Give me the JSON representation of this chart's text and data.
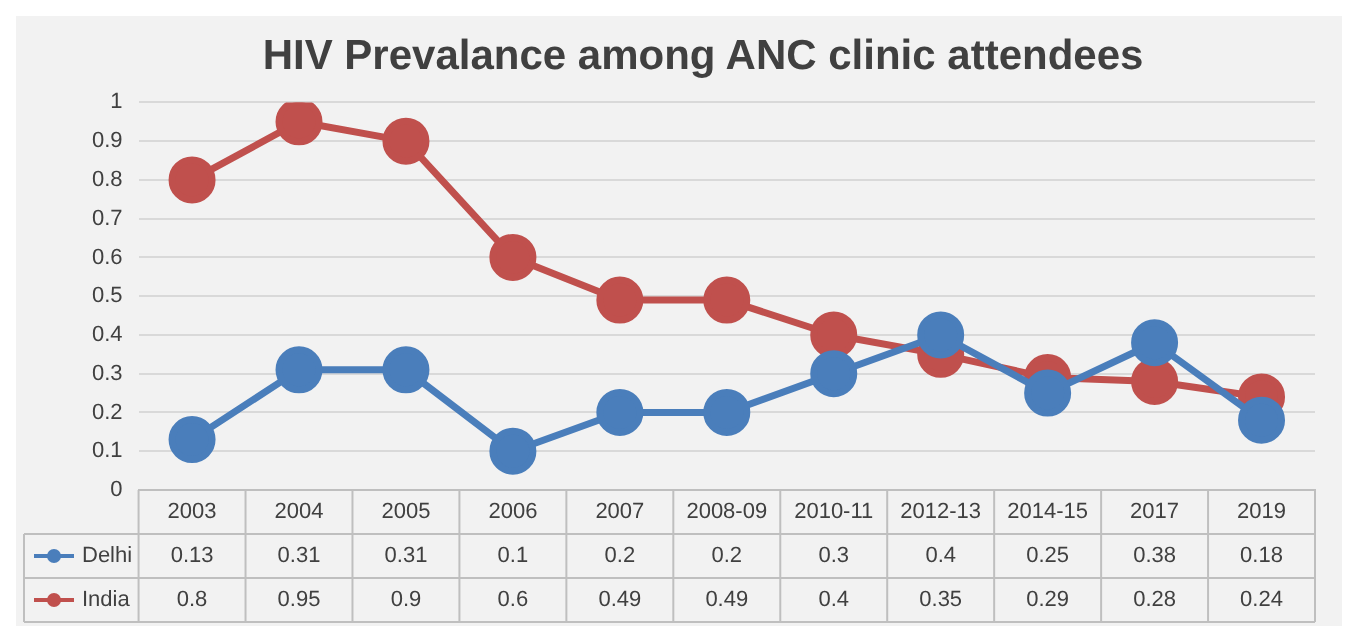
{
  "chart_data": {
    "type": "line",
    "title": "HIV Prevalance among ANC clinic attendees",
    "categories": [
      "2003",
      "2004",
      "2005",
      "2006",
      "2007",
      "2008-09",
      "2010-11",
      "2012-13",
      "2014-15",
      "2017",
      "2019"
    ],
    "series": [
      {
        "name": "Delhi",
        "color": "#4a7ebb",
        "values": [
          0.13,
          0.31,
          0.31,
          0.1,
          0.2,
          0.2,
          0.3,
          0.4,
          0.25,
          0.38,
          0.18
        ]
      },
      {
        "name": "India",
        "color": "#c0504d",
        "values": [
          0.8,
          0.95,
          0.9,
          0.6,
          0.49,
          0.49,
          0.4,
          0.35,
          0.29,
          0.28,
          0.24
        ]
      }
    ],
    "ylim": [
      0,
      1
    ],
    "yticks": [
      0,
      0.1,
      0.2,
      0.3,
      0.4,
      0.5,
      0.6,
      0.7,
      0.8,
      0.9,
      1
    ],
    "grid": "y",
    "legend": "bottom",
    "marker": "circle",
    "line_style": "solid",
    "data_labels": true
  }
}
